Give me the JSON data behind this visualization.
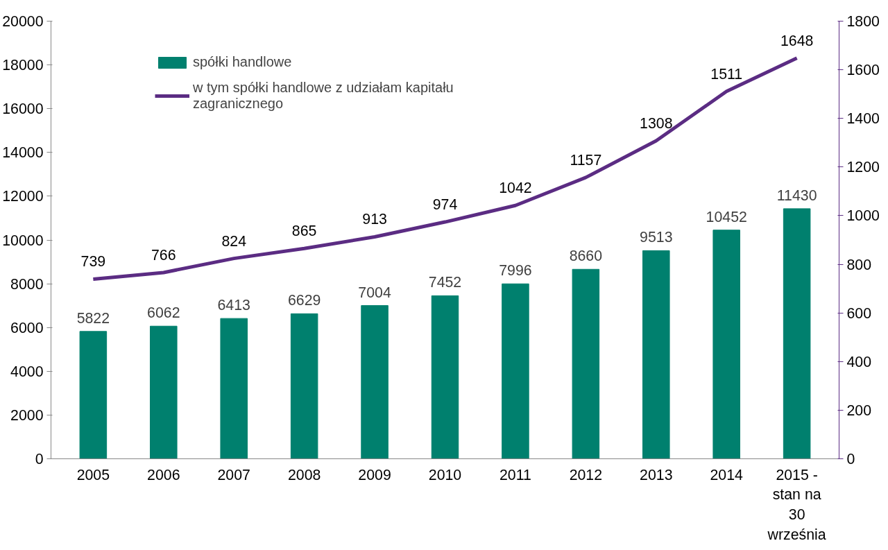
{
  "chart_data": {
    "type": "bar",
    "categories": [
      "2005",
      "2006",
      "2007",
      "2008",
      "2009",
      "2010",
      "2011",
      "2012",
      "2013",
      "2014",
      "2015 -\nstan na\n30\nwrześnia"
    ],
    "series": [
      {
        "name": "spółki handlowe",
        "color": "#00806e",
        "values": [
          5822,
          6062,
          6413,
          6629,
          7004,
          7452,
          7996,
          8660,
          9513,
          10452,
          11430
        ]
      },
      {
        "name": "w tym spółki handlowe z udziałam kapitału zagranicznego",
        "color": "#5b2c83",
        "type": "line",
        "axis": "y2",
        "values": [
          739,
          766,
          824,
          865,
          913,
          974,
          1042,
          1157,
          1308,
          1511,
          1648
        ]
      }
    ],
    "ylim": [
      0,
      20000
    ],
    "yticks": [
      0,
      2000,
      4000,
      6000,
      8000,
      10000,
      12000,
      14000,
      16000,
      18000,
      20000
    ],
    "y2lim": [
      0,
      1800
    ],
    "y2ticks": [
      0,
      200,
      400,
      600,
      800,
      1000,
      1200,
      1400,
      1600,
      1800
    ],
    "data_labels": true,
    "grid": false,
    "legend": "top left",
    "marker": "none",
    "line_style": "solid"
  }
}
